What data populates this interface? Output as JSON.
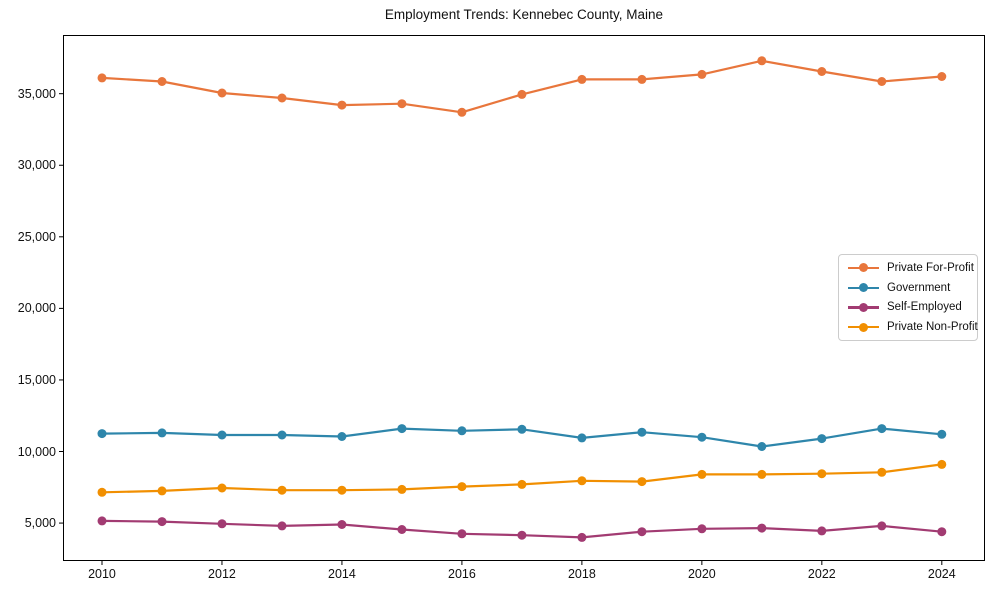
{
  "chart_data": {
    "type": "line",
    "title": "Employment Trends: Kennebec County, Maine",
    "xlabel": "",
    "ylabel": "",
    "x": [
      2010,
      2011,
      2012,
      2013,
      2014,
      2015,
      2016,
      2017,
      2018,
      2019,
      2020,
      2021,
      2022,
      2023,
      2024
    ],
    "series": [
      {
        "name": "Private For-Profit",
        "color": "#E8763C",
        "values": [
          36100,
          35850,
          35050,
          34700,
          34200,
          34300,
          33700,
          34950,
          36000,
          36000,
          36350,
          37300,
          36550,
          35850,
          36200
        ]
      },
      {
        "name": "Government",
        "color": "#2E86AB",
        "values": [
          11250,
          11300,
          11150,
          11150,
          11050,
          11600,
          11450,
          11550,
          10950,
          11350,
          11000,
          10350,
          10900,
          11600,
          11200
        ]
      },
      {
        "name": "Self-Employed",
        "color": "#A23B72",
        "values": [
          5150,
          5100,
          4950,
          4800,
          4900,
          4550,
          4250,
          4150,
          4000,
          4400,
          4600,
          4650,
          4450,
          4800,
          4400
        ]
      },
      {
        "name": "Private Non-Profit",
        "color": "#F18F01",
        "values": [
          7150,
          7250,
          7450,
          7300,
          7300,
          7350,
          7550,
          7700,
          7950,
          7900,
          8400,
          8400,
          8450,
          8550,
          9100
        ]
      }
    ],
    "xlim": [
      2009.35,
      2024.72
    ],
    "ylim": [
      2350,
      39100
    ],
    "xticks": [
      2010,
      2012,
      2014,
      2016,
      2018,
      2020,
      2022,
      2024
    ],
    "xtick_labels": [
      "2010",
      "2012",
      "2014",
      "2016",
      "2018",
      "2020",
      "2022",
      "2024"
    ],
    "yticks": [
      5000,
      10000,
      15000,
      20000,
      25000,
      30000,
      35000
    ],
    "ytick_labels": [
      "5,000",
      "10,000",
      "15,000",
      "20,000",
      "25,000",
      "30,000",
      "35,000"
    ],
    "grid": false,
    "legend_position": "center right",
    "marker": "circle",
    "line_width": 2.2,
    "marker_radius": 4.5,
    "axis_color": "#000000"
  }
}
